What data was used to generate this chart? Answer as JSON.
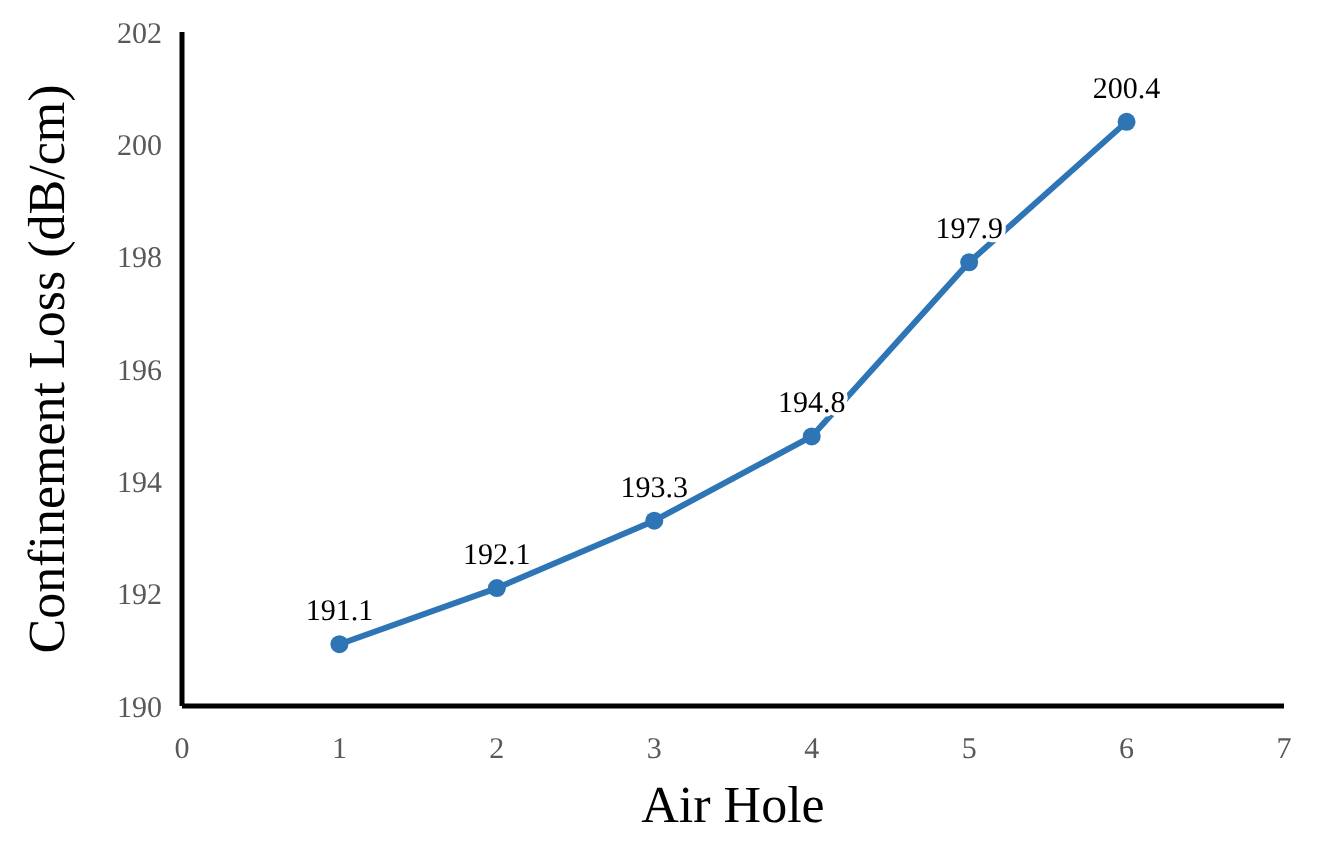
{
  "chart_data": {
    "type": "line",
    "xlabel": "Air Hole",
    "ylabel": "Confinement Loss (dB/cm)",
    "x": [
      1,
      2,
      3,
      4,
      5,
      6
    ],
    "series": [
      {
        "color": "#2e75b6",
        "values": [
          191.1,
          192.1,
          193.3,
          194.8,
          197.9,
          200.4
        ]
      }
    ],
    "xlim": [
      0,
      7
    ],
    "xticks": [
      0,
      1,
      2,
      3,
      4,
      5,
      6,
      7
    ],
    "ylim": [
      190,
      202
    ],
    "yticks": [
      190,
      192,
      194,
      196,
      198,
      200,
      202
    ],
    "data_labels": true,
    "marker": "circle",
    "line_style": "solid"
  }
}
